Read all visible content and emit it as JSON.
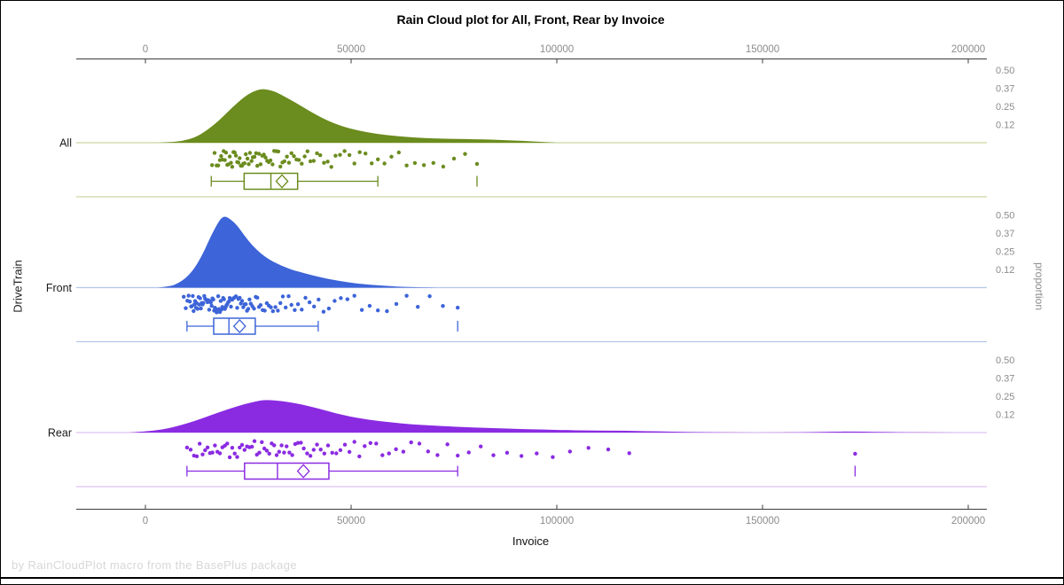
{
  "title": "Rain Cloud plot for All, Front, Rear by Invoice",
  "footer": "by RainCloudPlot macro from the BasePlus package",
  "axes": {
    "x": {
      "label": "Invoice",
      "ticks": [
        0,
        50000,
        100000,
        150000,
        200000
      ]
    },
    "y_left": {
      "label": "DriveTrain",
      "categories": [
        "All",
        "Front",
        "Rear"
      ]
    },
    "y_right": {
      "label": "proportion",
      "ticks": [
        {
          "label": "0.50",
          "value": 0.5
        },
        {
          "label": "0.37",
          "value": 0.375
        },
        {
          "label": "0.25",
          "value": 0.25
        },
        {
          "label": "0.12",
          "value": 0.125
        }
      ]
    }
  },
  "colors": {
    "axis_line": "#3C3C3C",
    "tick_label": "#8C8C8C",
    "category_label": "#1A1A1A",
    "title": "#000000",
    "footer": "#D7D7D7"
  },
  "chart_data": {
    "type": "raincloud",
    "title": "Rain Cloud plot for All, Front, Rear by Invoice",
    "xlabel": "Invoice",
    "ylabel_left": "DriveTrain",
    "ylabel_right": "proportion",
    "xlim": [
      -17000,
      204000
    ],
    "proportion_axis_max": 0.62,
    "groups": [
      {
        "name": "All",
        "color": "#6B8C1E",
        "light_color": "#C9D6A0",
        "density": {
          "x": [
            3000,
            6000,
            9000,
            12000,
            15000,
            18000,
            21000,
            24000,
            26000,
            28000,
            30000,
            32000,
            35000,
            38000,
            41000,
            44000,
            48000,
            52000,
            56000,
            60000,
            64000,
            68000,
            72000,
            76000,
            80000,
            84000,
            88000,
            92000,
            96000,
            100000
          ],
          "proportion": [
            0,
            0.003,
            0.012,
            0.035,
            0.085,
            0.155,
            0.24,
            0.315,
            0.35,
            0.37,
            0.365,
            0.345,
            0.3,
            0.25,
            0.2,
            0.155,
            0.11,
            0.082,
            0.062,
            0.048,
            0.038,
            0.032,
            0.028,
            0.026,
            0.024,
            0.021,
            0.017,
            0.012,
            0.006,
            0
          ]
        },
        "box": {
          "whisker_low": 16000,
          "q1": 24000,
          "median": 30500,
          "mean": 33200,
          "q3": 37000,
          "whisker_high": 56500,
          "outliers": [
            80600
          ]
        },
        "rain": [
          16200,
          16800,
          17300,
          17700,
          18100,
          18400,
          18700,
          19000,
          19300,
          19600,
          19900,
          20200,
          20500,
          20800,
          21100,
          21400,
          21700,
          22000,
          22300,
          22600,
          22900,
          23200,
          23500,
          23800,
          24100,
          24400,
          24800,
          25100,
          25400,
          25800,
          26100,
          26500,
          26900,
          27200,
          27600,
          28000,
          28400,
          28800,
          29200,
          29600,
          30000,
          30400,
          30900,
          31300,
          31800,
          32300,
          32800,
          33300,
          33800,
          34400,
          34900,
          35500,
          36100,
          36700,
          37300,
          38000,
          38700,
          39400,
          40100,
          40900,
          41700,
          42500,
          43400,
          44300,
          45200,
          46200,
          47300,
          48400,
          49600,
          50800,
          52100,
          53500,
          55000,
          56500,
          58100,
          59800,
          61600,
          63500,
          65500,
          67700,
          70000,
          72400,
          75000,
          77700,
          80600
        ]
      },
      {
        "name": "Front",
        "color": "#3D64D8",
        "light_color": "#B3C6EC",
        "density": {
          "x": [
            3000,
            6000,
            8000,
            10000,
            12000,
            14000,
            16000,
            18000,
            19000,
            20000,
            22000,
            24000,
            26000,
            28000,
            30000,
            32000,
            34000,
            36000,
            39000,
            42000,
            45000,
            48000,
            51000,
            55000,
            59000,
            63000,
            67000,
            71000
          ],
          "proportion": [
            0,
            0.008,
            0.03,
            0.07,
            0.135,
            0.235,
            0.36,
            0.465,
            0.49,
            0.485,
            0.44,
            0.36,
            0.29,
            0.235,
            0.195,
            0.165,
            0.14,
            0.12,
            0.096,
            0.075,
            0.057,
            0.042,
            0.03,
            0.019,
            0.011,
            0.005,
            0.002,
            0
          ]
        },
        "box": {
          "whisker_low": 10100,
          "q1": 16600,
          "median": 20300,
          "mean": 22900,
          "q3": 26700,
          "whisker_high": 42000,
          "outliers": [
            75900
          ]
        },
        "rain": [
          9300,
          9800,
          10200,
          10500,
          10800,
          11100,
          11300,
          11500,
          11700,
          11900,
          12100,
          12300,
          12500,
          12700,
          12900,
          13100,
          13300,
          13500,
          13700,
          13900,
          14100,
          14300,
          14500,
          14700,
          14900,
          15100,
          15300,
          15500,
          15700,
          15900,
          16100,
          16300,
          16500,
          16700,
          16900,
          17100,
          17300,
          17500,
          17700,
          17900,
          18100,
          18300,
          18500,
          18700,
          18900,
          19100,
          19300,
          19500,
          19700,
          19900,
          20100,
          20300,
          20500,
          20800,
          21100,
          21400,
          21700,
          22000,
          22300,
          22600,
          22900,
          23200,
          23500,
          23800,
          24100,
          24400,
          24700,
          25000,
          25300,
          25600,
          26000,
          26400,
          26800,
          27200,
          27600,
          28000,
          28500,
          29000,
          29500,
          30000,
          30500,
          31000,
          31600,
          32200,
          32800,
          33400,
          34100,
          34800,
          35500,
          36300,
          37100,
          38000,
          38900,
          39900,
          41000,
          42100,
          43300,
          44600,
          46000,
          47500,
          49100,
          50800,
          52600,
          54500,
          56500,
          58700,
          61000,
          63500,
          66200,
          69100,
          72300,
          75900
        ]
      },
      {
        "name": "Rear",
        "color": "#8A2BE2",
        "light_color": "#DCC0F2",
        "density": {
          "x": [
            -4000,
            0,
            4000,
            8000,
            12000,
            16000,
            20000,
            24000,
            27000,
            29000,
            32000,
            36000,
            40000,
            44000,
            48000,
            52000,
            57000,
            62000,
            67000,
            72000,
            77000,
            82000,
            87000,
            92000,
            97000,
            102000,
            107000,
            112000,
            117000,
            122000,
            127000,
            132000,
            137000,
            142000,
            148000,
            155000,
            162000,
            168000,
            172000,
            177000,
            183000,
            190000,
            196000
          ],
          "proportion": [
            0,
            0.008,
            0.02,
            0.045,
            0.08,
            0.12,
            0.16,
            0.195,
            0.215,
            0.225,
            0.22,
            0.205,
            0.18,
            0.15,
            0.12,
            0.098,
            0.078,
            0.063,
            0.052,
            0.045,
            0.038,
            0.033,
            0.028,
            0.024,
            0.02,
            0.017,
            0.014,
            0.013,
            0.012,
            0.01,
            0.007,
            0.004,
            0.002,
            0.001,
            0,
            0.001,
            0.003,
            0.006,
            0.007,
            0.005,
            0.002,
            0.001,
            0
          ]
        },
        "box": {
          "whisker_low": 10100,
          "q1": 24100,
          "median": 32100,
          "mean": 38400,
          "q3": 44600,
          "whisker_high": 75900,
          "outliers": [
            172500
          ]
        },
        "rain": [
          10100,
          11000,
          11800,
          12500,
          13200,
          13900,
          14500,
          15100,
          15700,
          16300,
          16900,
          17500,
          18100,
          18700,
          19300,
          19900,
          20500,
          21100,
          21700,
          22300,
          22900,
          23500,
          24100,
          24700,
          25300,
          25900,
          26500,
          27100,
          27700,
          28300,
          28900,
          29500,
          30100,
          30700,
          31300,
          31900,
          32500,
          33100,
          33700,
          34300,
          35000,
          35700,
          36400,
          37100,
          37800,
          38500,
          39300,
          40100,
          40900,
          41700,
          42600,
          43500,
          44400,
          45400,
          46400,
          47400,
          48500,
          49600,
          50800,
          52000,
          53300,
          54700,
          56100,
          57600,
          59200,
          60900,
          62700,
          64600,
          66600,
          68700,
          71000,
          73400,
          75900,
          78600,
          81500,
          84600,
          87900,
          91400,
          95100,
          99000,
          103200,
          107700,
          112500,
          117600,
          172500
        ]
      }
    ]
  }
}
